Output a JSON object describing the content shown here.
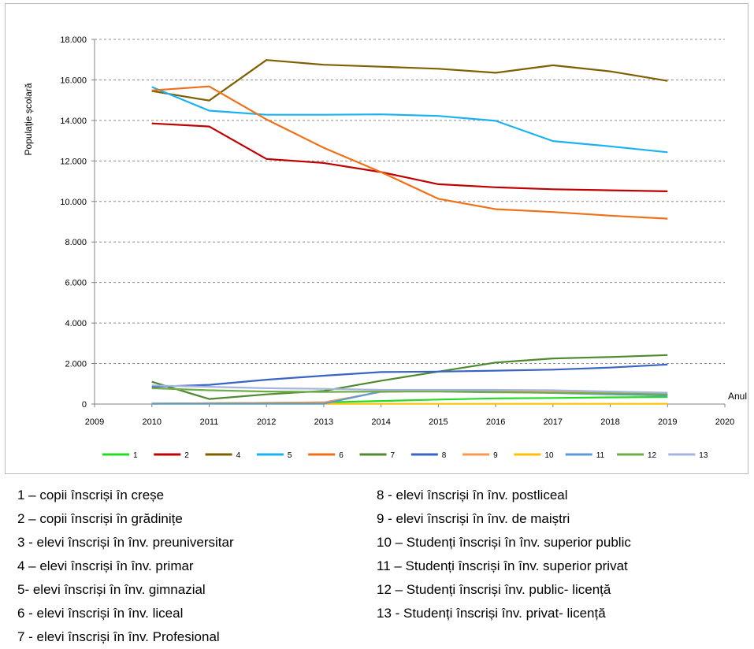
{
  "chart_data": {
    "type": "line",
    "title": "",
    "ylabel": "Populație școlară",
    "xlabel": "Anul",
    "xlim": [
      2009,
      2020
    ],
    "ylim": [
      0,
      18000
    ],
    "x_ticks": [
      "2009",
      "2010",
      "2011",
      "2012",
      "2013",
      "2014",
      "2015",
      "2016",
      "2017",
      "2018",
      "2019",
      "2020"
    ],
    "y_ticks": [
      "0",
      "2.000",
      "4.000",
      "6.000",
      "8.000",
      "10.000",
      "12.000",
      "14.000",
      "16.000",
      "18.000"
    ],
    "grid": "horizontal dashed",
    "legend_position": "bottom",
    "x": [
      2010,
      2011,
      2012,
      2013,
      2014,
      2015,
      2016,
      2017,
      2018,
      2019
    ],
    "series": [
      {
        "name": "1",
        "color": "#22dd22",
        "values": [
          20,
          40,
          60,
          80,
          150,
          220,
          280,
          300,
          330,
          350
        ]
      },
      {
        "name": "2",
        "color": "#c00000",
        "values": [
          13850,
          13700,
          12100,
          11900,
          11450,
          10850,
          10700,
          10600,
          10550,
          10500
        ]
      },
      {
        "name": "4",
        "color": "#7f6000",
        "values": [
          15450,
          14980,
          16980,
          16750,
          16650,
          16550,
          16350,
          16720,
          16420,
          15950
        ]
      },
      {
        "name": "5",
        "color": "#1ab2f0",
        "values": [
          15650,
          14480,
          14280,
          14280,
          14300,
          14220,
          13980,
          12980,
          12720,
          12430
        ]
      },
      {
        "name": "6",
        "color": "#f07018",
        "values": [
          15480,
          15680,
          14050,
          12650,
          11450,
          10130,
          9620,
          9480,
          9300,
          9150
        ]
      },
      {
        "name": "7",
        "color": "#4e8a30",
        "values": [
          1100,
          250,
          480,
          650,
          1150,
          1600,
          2050,
          2250,
          2320,
          2420
        ]
      },
      {
        "name": "8",
        "color": "#3a64c4",
        "values": [
          850,
          950,
          1200,
          1400,
          1580,
          1600,
          1650,
          1700,
          1800,
          1950
        ]
      },
      {
        "name": "9",
        "color": "#f59a50",
        "values": [
          20,
          40,
          60,
          80,
          600,
          650,
          650,
          650,
          580,
          480
        ]
      },
      {
        "name": "10",
        "color": "#ffc000",
        "values": [
          10,
          10,
          10,
          10,
          10,
          10,
          10,
          10,
          10,
          10
        ]
      },
      {
        "name": "11",
        "color": "#5b9bd5",
        "values": [
          20,
          20,
          20,
          20,
          620,
          640,
          600,
          550,
          480,
          420
        ]
      },
      {
        "name": "12",
        "color": "#70ad47",
        "values": [
          780,
          680,
          620,
          600,
          620,
          620,
          580,
          560,
          520,
          480
        ]
      },
      {
        "name": "13",
        "color": "#a5b5e0",
        "values": [
          920,
          850,
          780,
          750,
          700,
          700,
          700,
          680,
          620,
          560
        ]
      }
    ]
  },
  "legend_text": {
    "left": [
      "1 – copii înscriși în creșe",
      "2 – copii înscriși în grădinițe",
      "3 -  elevi înscriși în înv. preuniversitar",
      "4 – elevi înscriși în înv. primar",
      "5- elevi înscriși în înv. gimnazial",
      "6 - elevi înscriși în înv. liceal",
      "7 - elevi înscriși în înv. Profesional"
    ],
    "right": [
      "8 - elevi înscriși în înv. postliceal",
      "9 - elevi înscriși în înv. de maiștri",
      "10 – Studenți înscriși în înv. superior public",
      "11 – Studenți înscriși în înv. superior privat",
      "12 – Studenți înscriși înv. public- licență",
      "13 - Studenți înscriși înv. privat- licență"
    ]
  }
}
